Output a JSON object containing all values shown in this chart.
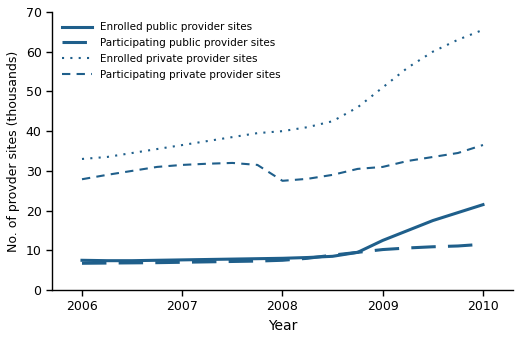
{
  "years": [
    2006,
    2006.25,
    2006.5,
    2006.75,
    2007,
    2007.25,
    2007.5,
    2007.75,
    2008,
    2008.25,
    2008.5,
    2008.75,
    2009,
    2009.25,
    2009.5,
    2009.75,
    2010
  ],
  "enrolled_public": [
    7.5,
    7.4,
    7.4,
    7.5,
    7.6,
    7.7,
    7.8,
    7.9,
    8.0,
    8.2,
    8.5,
    9.5,
    12.5,
    15.0,
    17.5,
    19.5,
    21.5
  ],
  "participating_public": [
    6.745,
    6.8,
    6.85,
    6.9,
    7.0,
    7.1,
    7.2,
    7.3,
    7.5,
    8.0,
    8.8,
    9.5,
    10.2,
    10.6,
    10.9,
    11.1,
    11.536
  ],
  "enrolled_private": [
    33.0,
    33.5,
    34.5,
    35.5,
    36.5,
    37.5,
    38.5,
    39.5,
    40.0,
    41.0,
    42.5,
    46.0,
    51.0,
    56.0,
    60.0,
    63.0,
    65.5
  ],
  "participating_private": [
    27.894,
    29.0,
    30.0,
    31.0,
    31.5,
    31.8,
    32.0,
    31.5,
    27.5,
    28.0,
    29.0,
    30.5,
    31.0,
    32.5,
    33.5,
    34.5,
    36.512
  ],
  "color": "#1f5f8b",
  "xlabel": "Year",
  "ylabel": "No. of provder sites (thousands)",
  "ylim": [
    0,
    70
  ],
  "yticks": [
    0,
    10,
    20,
    30,
    40,
    50,
    60,
    70
  ],
  "xlim": [
    2005.7,
    2010.3
  ],
  "legend_labels": [
    "Enrolled public provider sites",
    "Participating public provider sites",
    "Enrolled private provider sites",
    "Participating private provider sites"
  ]
}
